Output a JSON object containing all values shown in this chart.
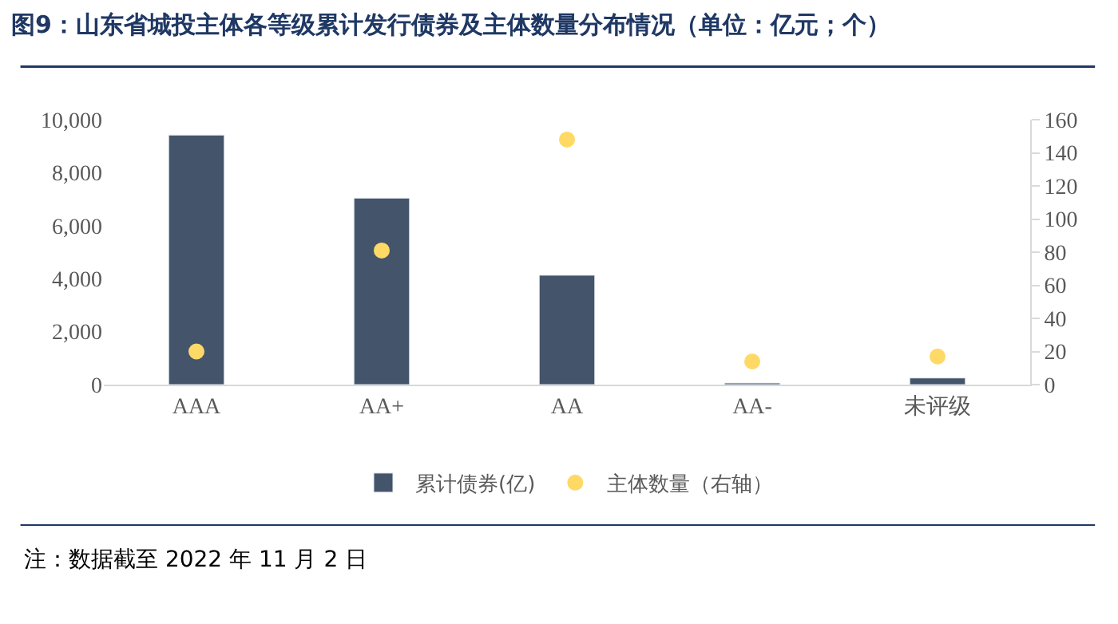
{
  "chart_data": {
    "type": "bar",
    "title": "图9：山东省城投主体各等级累计发行债券及主体数量分布情况（单位：亿元；个）",
    "categories": [
      "AAA",
      "AA+",
      "AA",
      "AA-",
      "未评级"
    ],
    "series": [
      {
        "name": "累计债券(亿)",
        "color": "#44546a",
        "values": [
          9420,
          7040,
          4130,
          60,
          250
        ]
      },
      {
        "name": "主体数量（右轴）",
        "type": "scatter",
        "axis": "y2",
        "color": "#ffd966",
        "values": [
          20,
          81,
          148,
          14,
          17
        ]
      }
    ],
    "ylim": [
      0,
      10000
    ],
    "yticks": [
      {
        "value": 0,
        "label": "0"
      },
      {
        "value": 2000,
        "label": "2,000"
      },
      {
        "value": 4000,
        "label": "4,000"
      },
      {
        "value": 6000,
        "label": "6,000"
      },
      {
        "value": 8000,
        "label": "8,000"
      },
      {
        "value": 10000,
        "label": "10,000"
      }
    ],
    "y2lim": [
      0,
      160
    ],
    "y2ticks": [
      0,
      20,
      40,
      60,
      80,
      100,
      120,
      140,
      160
    ],
    "legend": "bottom",
    "annotations": [
      "注：数据截至 2022 年 11 月 2 日"
    ]
  }
}
